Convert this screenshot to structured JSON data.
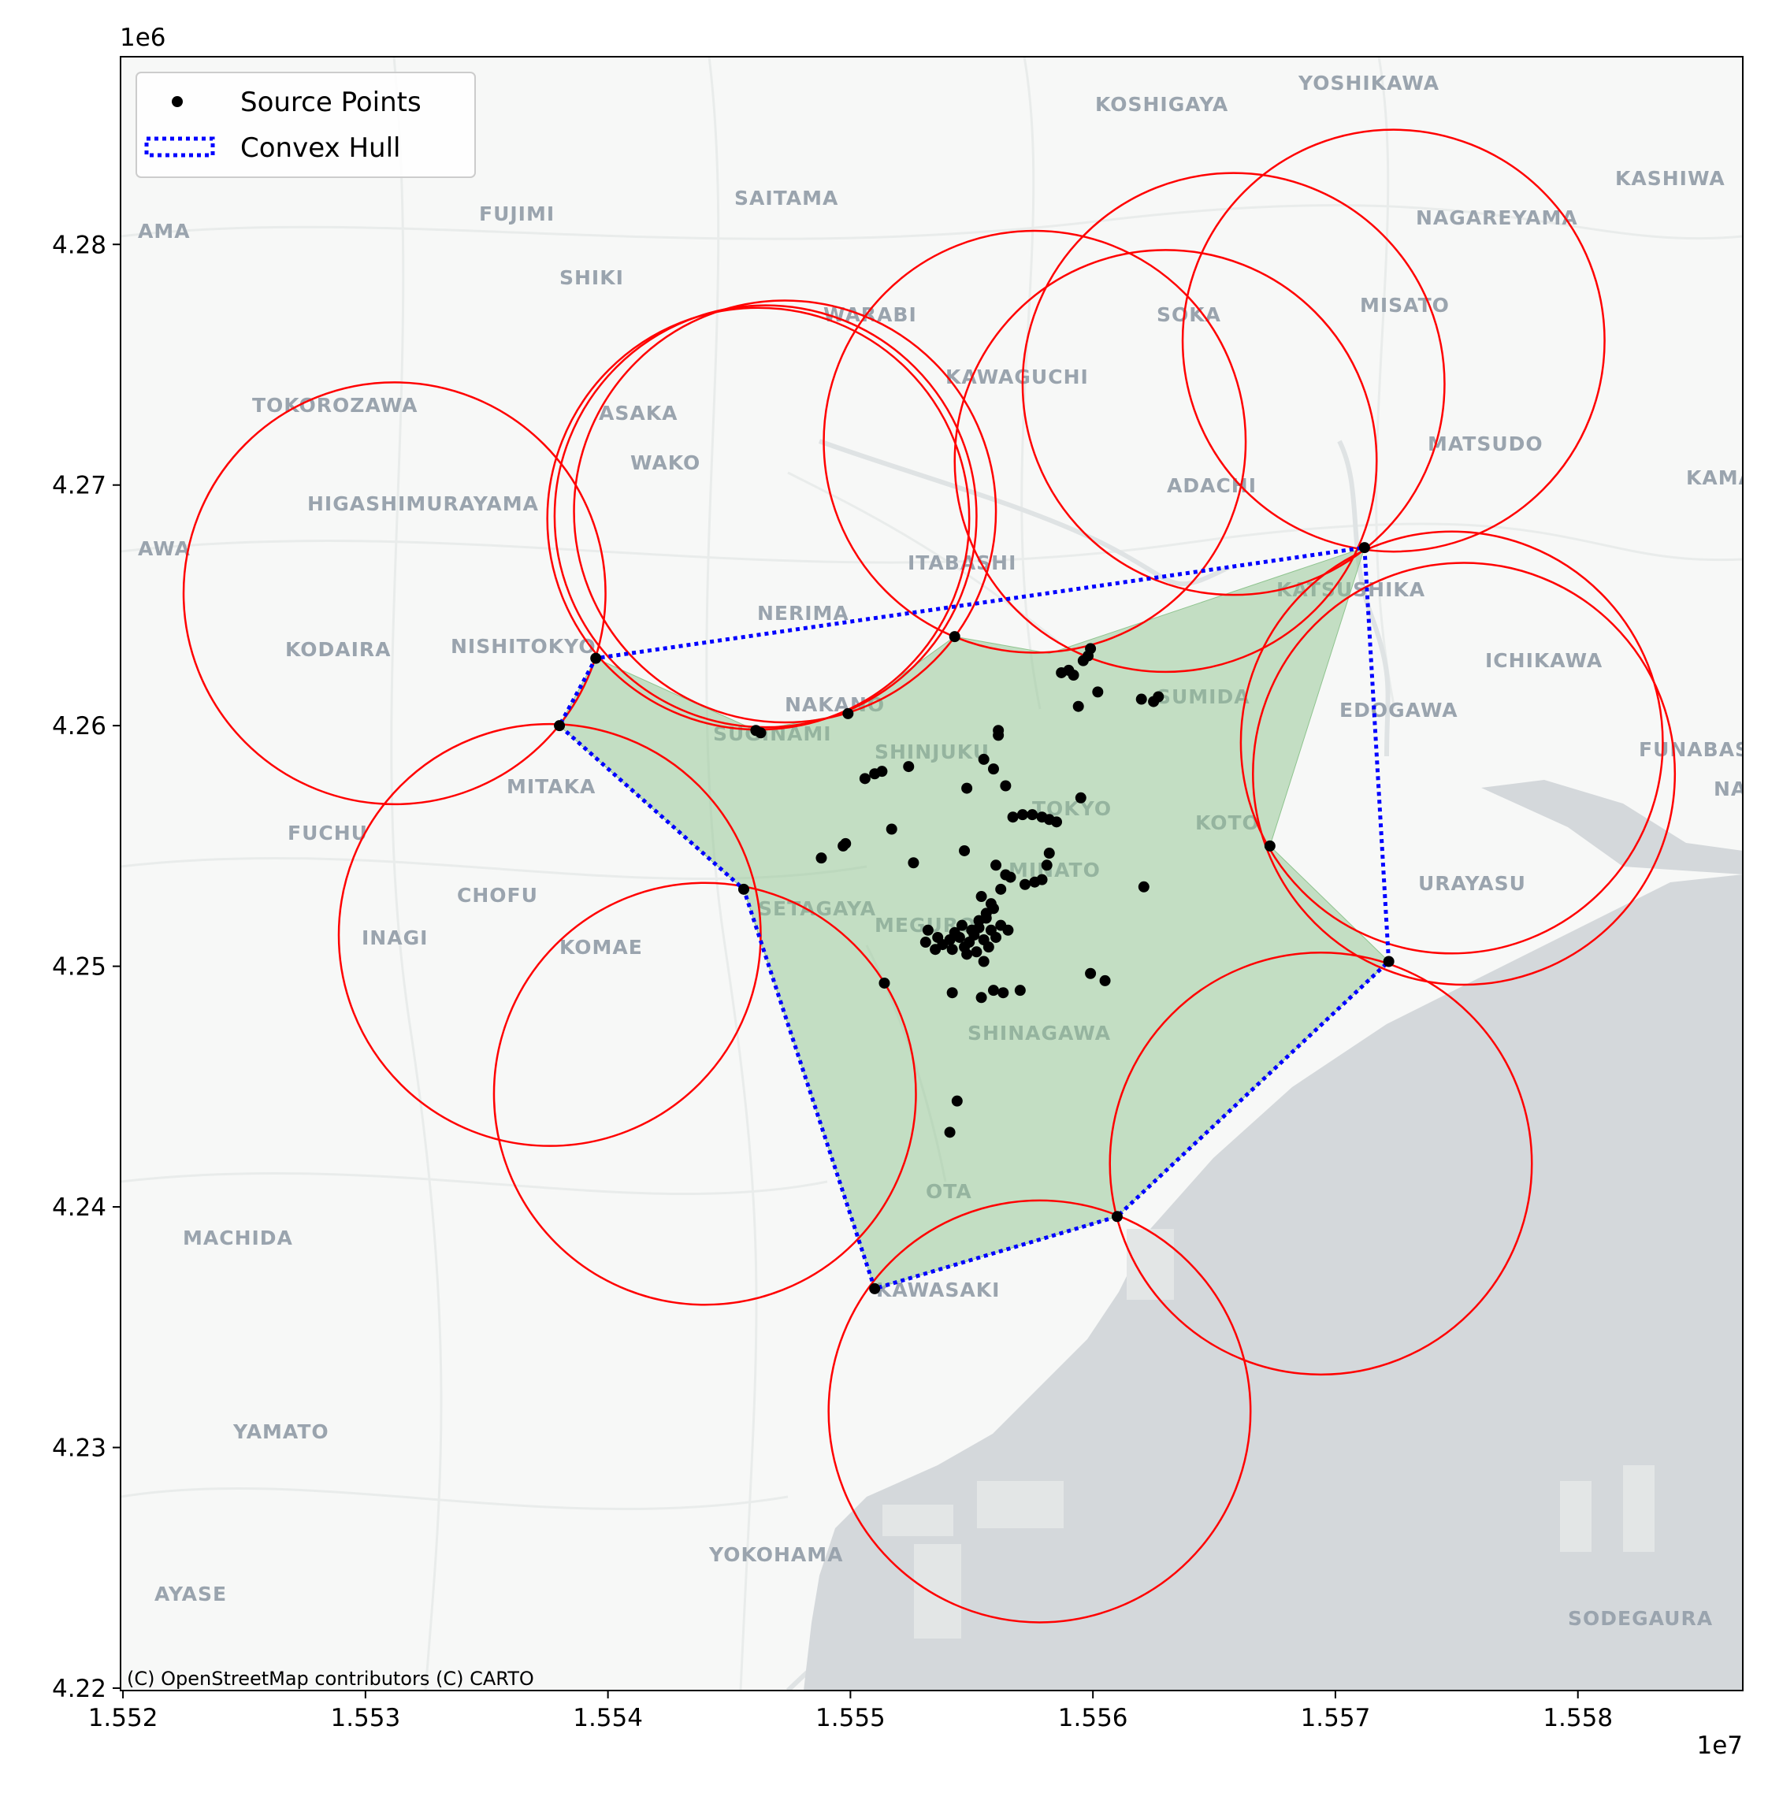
{
  "chart_data": {
    "type": "scatter",
    "title": "",
    "xlabel": "",
    "ylabel": "",
    "x_offset_label": "1e7",
    "y_offset_label": "1e6",
    "xlim": [
      15519900,
      15586800
    ],
    "ylim": [
      4219900,
      4287800
    ],
    "x_ticks": [
      {
        "value": 15520000,
        "label": "1.552"
      },
      {
        "value": 15530000,
        "label": "1.553"
      },
      {
        "value": 15540000,
        "label": "1.554"
      },
      {
        "value": 15550000,
        "label": "1.555"
      },
      {
        "value": 15560000,
        "label": "1.556"
      },
      {
        "value": 15570000,
        "label": "1.557"
      },
      {
        "value": 15580000,
        "label": "1.558"
      }
    ],
    "y_ticks": [
      {
        "value": 4220000,
        "label": "4.22"
      },
      {
        "value": 4230000,
        "label": "4.23"
      },
      {
        "value": 4240000,
        "label": "4.24"
      },
      {
        "value": 4250000,
        "label": "4.25"
      },
      {
        "value": 4260000,
        "label": "4.26"
      },
      {
        "value": 4270000,
        "label": "4.27"
      },
      {
        "value": 4280000,
        "label": "4.28"
      }
    ],
    "legend": {
      "position": "upper-left",
      "entries": [
        {
          "label": "Source Points",
          "marker": "dot",
          "color": "#000000"
        },
        {
          "label": "Convex Hull",
          "marker": "dotted-line",
          "color": "#0000ff"
        }
      ]
    },
    "hull_vertices": [
      [
        15551000,
        4236600
      ],
      [
        15545600,
        4253200
      ],
      [
        15538000,
        4260000
      ],
      [
        15539500,
        4262800
      ],
      [
        15571200,
        4267400
      ],
      [
        15572200,
        4250200
      ],
      [
        15561000,
        4239600
      ]
    ],
    "covered_region_vertices": [
      [
        15551000,
        4236600
      ],
      [
        15545600,
        4253200
      ],
      [
        15538000,
        4260000
      ],
      [
        15539500,
        4262800
      ],
      [
        15546100,
        4259800
      ],
      [
        15549900,
        4260500
      ],
      [
        15554300,
        4263700
      ],
      [
        15558200,
        4263000
      ],
      [
        15571200,
        4267400
      ],
      [
        15567300,
        4255000
      ],
      [
        15572200,
        4250200
      ],
      [
        15561000,
        4239600
      ]
    ],
    "circles": [
      {
        "cx": 15531200,
        "cy": 4265500,
        "r": 8700
      },
      {
        "cx": 15537600,
        "cy": 4251300,
        "r": 8700
      },
      {
        "cx": 15544000,
        "cy": 4244700,
        "r": 8700
      },
      {
        "cx": 15546200,
        "cy": 4268600,
        "r": 8700
      },
      {
        "cx": 15546500,
        "cy": 4268700,
        "r": 8700
      },
      {
        "cx": 15547300,
        "cy": 4268900,
        "r": 8700
      },
      {
        "cx": 15557600,
        "cy": 4271800,
        "r": 8700
      },
      {
        "cx": 15563000,
        "cy": 4271000,
        "r": 8700
      },
      {
        "cx": 15565800,
        "cy": 4274200,
        "r": 8700
      },
      {
        "cx": 15572400,
        "cy": 4276000,
        "r": 8700
      },
      {
        "cx": 15574800,
        "cy": 4259300,
        "r": 8700
      },
      {
        "cx": 15575300,
        "cy": 4258000,
        "r": 8700
      },
      {
        "cx": 15569400,
        "cy": 4241800,
        "r": 8700
      },
      {
        "cx": 15557800,
        "cy": 4231500,
        "r": 8700
      }
    ],
    "points": [
      [
        15551000,
        4236600
      ],
      [
        15545600,
        4253200
      ],
      [
        15538000,
        4260000
      ],
      [
        15539500,
        4262800
      ],
      [
        15571200,
        4267400
      ],
      [
        15572200,
        4250200
      ],
      [
        15561000,
        4239600
      ],
      [
        15567300,
        4255000
      ],
      [
        15554300,
        4263700
      ],
      [
        15549900,
        4260500
      ],
      [
        15546100,
        4259800
      ],
      [
        15546300,
        4259700
      ],
      [
        15551400,
        4249300
      ],
      [
        15554100,
        4243100
      ],
      [
        15554400,
        4244400
      ],
      [
        15558700,
        4262200
      ],
      [
        15559000,
        4262300
      ],
      [
        15559200,
        4262100
      ],
      [
        15559600,
        4262700
      ],
      [
        15559800,
        4262900
      ],
      [
        15559900,
        4263200
      ],
      [
        15560200,
        4261400
      ],
      [
        15559400,
        4260800
      ],
      [
        15562000,
        4261100
      ],
      [
        15562500,
        4261000
      ],
      [
        15562700,
        4261200
      ],
      [
        15556100,
        4259600
      ],
      [
        15556100,
        4259800
      ],
      [
        15555500,
        4258600
      ],
      [
        15555900,
        4258200
      ],
      [
        15554800,
        4257400
      ],
      [
        15556400,
        4257500
      ],
      [
        15552400,
        4258300
      ],
      [
        15550600,
        4257800
      ],
      [
        15551000,
        4258000
      ],
      [
        15551300,
        4258100
      ],
      [
        15551700,
        4255700
      ],
      [
        15552600,
        4254300
      ],
      [
        15554700,
        4254800
      ],
      [
        15548800,
        4254500
      ],
      [
        15549700,
        4255000
      ],
      [
        15549800,
        4255100
      ],
      [
        15556700,
        4256200
      ],
      [
        15557100,
        4256300
      ],
      [
        15557500,
        4256300
      ],
      [
        15557900,
        4256200
      ],
      [
        15558200,
        4256100
      ],
      [
        15558500,
        4256000
      ],
      [
        15559500,
        4257000
      ],
      [
        15556000,
        4254200
      ],
      [
        15556400,
        4253800
      ],
      [
        15556600,
        4253700
      ],
      [
        15556200,
        4253200
      ],
      [
        15557200,
        4253400
      ],
      [
        15557600,
        4253500
      ],
      [
        15557900,
        4253600
      ],
      [
        15558100,
        4254200
      ],
      [
        15558200,
        4254700
      ],
      [
        15555900,
        4252400
      ],
      [
        15562100,
        4253300
      ],
      [
        15559900,
        4249700
      ],
      [
        15560500,
        4249400
      ],
      [
        15553200,
        4251500
      ],
      [
        15553100,
        4251000
      ],
      [
        15553500,
        4250700
      ],
      [
        15553800,
        4250900
      ],
      [
        15554100,
        4251100
      ],
      [
        15554300,
        4251400
      ],
      [
        15554500,
        4251200
      ],
      [
        15554700,
        4250800
      ],
      [
        15554900,
        4251000
      ],
      [
        15555100,
        4251300
      ],
      [
        15555300,
        4251600
      ],
      [
        15555500,
        4251100
      ],
      [
        15555700,
        4250800
      ],
      [
        15555000,
        4251500
      ],
      [
        15554600,
        4251700
      ],
      [
        15554200,
        4250700
      ],
      [
        15555800,
        4251500
      ],
      [
        15556000,
        4251200
      ],
      [
        15556200,
        4251700
      ],
      [
        15556500,
        4251500
      ],
      [
        15555600,
        4252000
      ],
      [
        15555300,
        4251900
      ],
      [
        15555500,
        4250200
      ],
      [
        15555900,
        4249000
      ],
      [
        15556300,
        4248900
      ],
      [
        15557000,
        4249000
      ],
      [
        15555400,
        4248700
      ],
      [
        15554200,
        4248900
      ],
      [
        15553600,
        4251200
      ],
      [
        15554800,
        4250500
      ],
      [
        15555200,
        4250600
      ],
      [
        15555800,
        4252600
      ],
      [
        15555400,
        4252900
      ],
      [
        15555600,
        4252200
      ]
    ],
    "place_labels": [
      "YOSHIKAWA",
      "KOSHIGAYA",
      "KASHIWA",
      "SAITAMA",
      "FUJIMI",
      "NAGAREYAMA",
      "SHIKI",
      "WARABI",
      "SOKA",
      "MISATO",
      "KAWAGUCHI",
      "TOKOROZAWA",
      "ASAKA",
      "WAKO",
      "MATSUDO",
      "ADACHI",
      "KAMAGAYA",
      "HIGASHIMURAYAMA",
      "ITABASHI",
      "KATSUSHIKA",
      "NERIMA",
      "KODAIRA",
      "NISHITOKYO",
      "ICHIKAWA",
      "SUMIDA",
      "NAKANO",
      "EDOGAWA",
      "SUGINAMI",
      "SHINJUKU",
      "FUNABASHI",
      "MITAKA",
      "TOKYO",
      "KOTO",
      "FUCHU",
      "MINATO",
      "URAYASU",
      "CHOFU",
      "SETAGAYA",
      "MEGURO",
      "INAGI",
      "KOMAE",
      "SHINAGAWA",
      "OTA",
      "MACHIDA",
      "KAWASAKI",
      "YAMATO",
      "YOKOHAMA",
      "AYASE",
      "SODEGAURA",
      "NAR",
      "AMA",
      "AWA"
    ],
    "attribution": "(C) OpenStreetMap contributors (C) CARTO",
    "colors": {
      "points": "#000000",
      "hull": "#0000ff",
      "circles": "#ff0000",
      "region_fill": "#8fc48f",
      "water": "#d4d8db",
      "land": "#f7f8f7",
      "place_label": "#9aa4ae"
    }
  }
}
